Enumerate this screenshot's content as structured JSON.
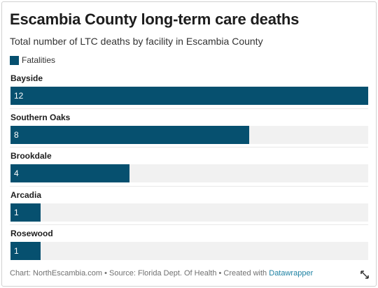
{
  "title": "Escambia County long-term care deaths",
  "subtitle": "Total number of LTC deaths by facility in Escambia County",
  "legend": {
    "label": "Fatalities",
    "color": "#06506f"
  },
  "colors": {
    "bar": "#06506f",
    "track": "#f1f1f1"
  },
  "chart_data": {
    "type": "bar",
    "orientation": "horizontal",
    "categories": [
      "Bayside",
      "Southern Oaks",
      "Brookdale",
      "Arcadia",
      "Rosewood"
    ],
    "series": [
      {
        "name": "Fatalities",
        "values": [
          12,
          8,
          4,
          1,
          1
        ]
      }
    ],
    "xlim": [
      0,
      12
    ],
    "grid": false,
    "legend_position": "top-left"
  },
  "footer": {
    "credits": "Chart: NorthEscambia.com • Source: Florida Dept. Of Health • Created with ",
    "link_label": "Datawrapper"
  },
  "icons": {
    "expand": "expand-icon"
  }
}
